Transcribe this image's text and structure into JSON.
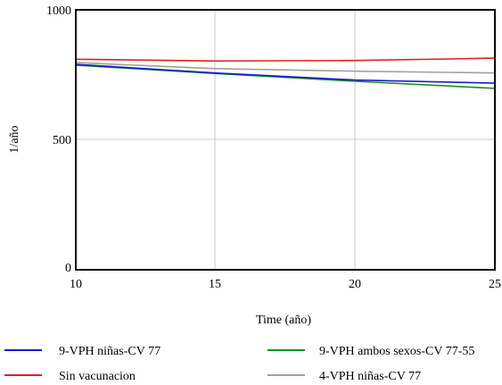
{
  "chart_data": {
    "type": "line",
    "title": "",
    "xlabel": "Time (año)",
    "ylabel": "1/año",
    "xlim": [
      10,
      25
    ],
    "ylim": [
      0,
      1000
    ],
    "x_ticks": [
      "10",
      "15",
      "20",
      "25"
    ],
    "y_ticks": [
      "0",
      "500",
      "1000"
    ],
    "grid": true,
    "legend_position": "bottom",
    "x": [
      10,
      15,
      20,
      25
    ],
    "series": [
      {
        "name": "9-VPH niñas-CV 77",
        "color": "#1a1ad6",
        "values": [
          790,
          757,
          730,
          718
        ]
      },
      {
        "name": "9-VPH ambos sexos-CV 77-55",
        "color": "#1a8f1a",
        "values": [
          787,
          755,
          725,
          698
        ]
      },
      {
        "name": "Sin vacunacion",
        "color": "#e02020",
        "values": [
          810,
          803,
          805,
          814
        ]
      },
      {
        "name": "4-VPH niñas-CV 77",
        "color": "#a0a0a0",
        "values": [
          797,
          774,
          764,
          757
        ]
      }
    ]
  }
}
